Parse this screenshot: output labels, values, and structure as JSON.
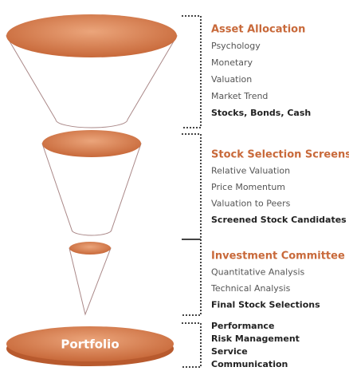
{
  "sections": [
    {
      "title": "Asset Allocation",
      "items": [
        "Psychology",
        "Monetary",
        "Valuation",
        "Market Trend"
      ],
      "result": "Stocks, Bonds, Cash"
    },
    {
      "title": "Stock Selection Screens",
      "items": [
        "Relative Valuation",
        "Price Momentum",
        "Valuation to Peers"
      ],
      "result": "Screened Stock Candidates"
    },
    {
      "title": "Investment Committee",
      "items": [
        "Quantitative Analysis",
        "Technical Analysis"
      ],
      "result": "Final Stock Selections"
    }
  ],
  "portfolio": {
    "label": "Portfolio",
    "items": [
      "Performance",
      "Risk Management",
      "Service",
      "Communication"
    ]
  }
}
